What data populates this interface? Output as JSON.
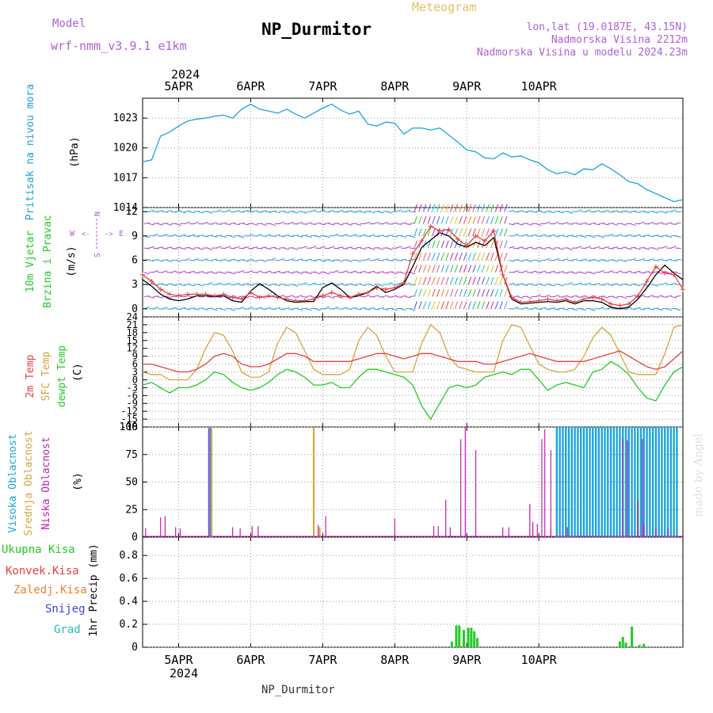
{
  "header": {
    "model_label": "Model",
    "model_name": "wrf-nmm_v3.9.1 e1km",
    "meteogram_label": "Meteogram",
    "station_title": "NP_Durmitor",
    "coords": "lon,lat (19.0187E, 43.15N)",
    "elevation": "Nadmorska Visina 2212m",
    "model_elevation": "Nadmorska Visina u modelu 2024.23m"
  },
  "top_axis": {
    "year": "2024",
    "days": [
      "5APR",
      "6APR",
      "7APR",
      "8APR",
      "9APR",
      "10APR"
    ]
  },
  "bottom_axis": {
    "year": "2024",
    "days": [
      "5APR",
      "6APR",
      "7APR",
      "8APR",
      "9APR",
      "10APR"
    ],
    "footer": "NP_Durmitor"
  },
  "watermark": "made by Angel",
  "colors": {
    "pressure": "#1ba3e0",
    "temp2m": "#e84040",
    "sfc_temp": "#d9a43a",
    "dewpt": "#22cc22",
    "high_cloud": "#1ba3e0",
    "mid_cloud": "#d9a43a",
    "low_cloud": "#c020b0",
    "precip_total": "#22cc22",
    "wind_speed_line": "#000000",
    "wind_gust": "#e84040"
  },
  "panels": {
    "pressure": {
      "label_left": "Pritisak na nivou mora",
      "unit": "(hPa)",
      "ticks": [
        "1023",
        "1020",
        "1017",
        "1014"
      ]
    },
    "wind": {
      "label_left_1": "10m Vjetar",
      "label_left_2": "Brzina i Pravac",
      "unit": "(m/s)",
      "ticks": [
        "12",
        "9",
        "6",
        "3",
        "0"
      ],
      "compass": {
        "n": "N",
        "s": "S",
        "e": "E",
        "w": "W"
      }
    },
    "temp": {
      "label_1": "2m Temp",
      "label_2": "SFC Temp",
      "label_3": "dewpt Temp",
      "unit": "(C)",
      "ticks": [
        "24",
        "21",
        "18",
        "15",
        "12",
        "9",
        "6",
        "3",
        "0",
        "-3",
        "-6",
        "-9",
        "-12",
        "-15",
        "-18"
      ]
    },
    "cloud": {
      "label_1": "Visoka Oblacnost",
      "label_2": "Srednja Oblacnost",
      "label_3": "Niska Oblacnost",
      "unit": "(%)",
      "ticks": [
        "100",
        "75",
        "50",
        "25",
        "0"
      ]
    },
    "precip": {
      "legend": [
        "Ukupna Kisa",
        "Konvek.Kisa",
        "Zaledj.Kisa",
        "Snijeg",
        "Grad"
      ],
      "unit": "1hr Precip (mm)",
      "ticks": [
        "0.8",
        "0.6",
        "0.4",
        "0.2",
        "0"
      ]
    }
  },
  "chart_data": [
    {
      "type": "line",
      "name": "pressure",
      "ylabel": "(hPa)",
      "ylim": [
        1014,
        1025
      ],
      "x_hours": [
        0,
        6,
        12,
        18,
        24,
        30,
        36,
        42,
        48,
        54,
        60,
        66,
        72,
        78,
        84,
        90,
        96,
        102,
        108,
        114,
        120,
        126,
        132,
        138,
        144,
        150,
        156,
        162,
        168,
        174,
        180,
        186,
        192,
        198,
        204,
        210,
        216,
        222,
        228,
        234,
        240,
        246,
        252,
        258,
        264,
        270,
        276,
        282,
        288,
        294,
        300,
        306,
        312,
        318,
        324,
        330,
        336,
        342,
        348,
        354,
        360
      ],
      "values": [
        1018.6,
        1018.8,
        1021.2,
        1021.6,
        1022.2,
        1022.7,
        1022.9,
        1023.0,
        1023.2,
        1023.3,
        1023.0,
        1023.9,
        1024.4,
        1023.9,
        1023.7,
        1023.5,
        1023.9,
        1023.4,
        1023.0,
        1023.5,
        1024.0,
        1024.4,
        1023.8,
        1023.4,
        1023.7,
        1022.4,
        1022.2,
        1022.6,
        1022.5,
        1021.4,
        1022.0,
        1022.0,
        1021.8,
        1022.0,
        1021.3,
        1020.6,
        1019.8,
        1019.6,
        1019.0,
        1018.9,
        1019.5,
        1019.1,
        1019.2,
        1018.8,
        1018.5,
        1017.8,
        1017.4,
        1017.6,
        1017.3,
        1017.9,
        1017.8,
        1018.4,
        1017.9,
        1017.3,
        1016.6,
        1016.4,
        1015.8,
        1015.4,
        1015.0,
        1014.6,
        1014.8
      ]
    },
    {
      "type": "line",
      "name": "wind",
      "ylabel": "(m/s)",
      "ylim": [
        -1,
        12.5
      ],
      "x_hours": [
        0,
        6,
        12,
        18,
        24,
        30,
        36,
        42,
        48,
        54,
        60,
        66,
        72,
        78,
        84,
        90,
        96,
        102,
        108,
        114,
        120,
        126,
        132,
        138,
        144,
        150,
        156,
        162,
        168,
        174,
        180,
        186,
        192,
        198,
        204,
        210,
        216,
        222,
        228,
        234,
        240,
        246,
        252,
        258,
        264,
        270,
        276,
        282,
        288,
        294,
        300,
        306,
        312,
        318,
        324,
        330,
        336,
        342,
        348,
        354,
        360
      ],
      "speed": [
        3.6,
        2.8,
        1.8,
        1.2,
        1.0,
        1.2,
        1.6,
        1.6,
        1.5,
        1.6,
        1.0,
        0.8,
        2.2,
        3.1,
        2.4,
        1.6,
        1.0,
        0.8,
        0.9,
        0.9,
        2.6,
        3.2,
        2.4,
        1.4,
        1.6,
        2.0,
        2.8,
        2.0,
        2.4,
        3.0,
        5.2,
        7.6,
        8.5,
        9.4,
        9.0,
        8.0,
        7.6,
        8.2,
        7.8,
        8.8,
        4.2,
        1.2,
        0.6,
        0.7,
        0.8,
        0.9,
        0.8,
        1.0,
        0.6,
        1.0,
        1.0,
        0.8,
        0.2,
        0.0,
        0.2,
        1.2,
        2.6,
        4.2,
        5.4,
        4.4,
        3.6
      ],
      "gust": [
        4.2,
        3.4,
        2.4,
        1.8,
        1.6,
        1.8,
        1.8,
        1.8,
        1.6,
        1.8,
        1.4,
        1.2,
        2.0,
        1.4,
        1.6,
        1.4,
        1.2,
        1.0,
        1.0,
        1.2,
        1.6,
        2.0,
        1.6,
        1.4,
        1.8,
        2.0,
        2.6,
        2.4,
        2.6,
        3.2,
        6.8,
        8.4,
        10.2,
        9.6,
        9.8,
        8.6,
        7.8,
        9.0,
        8.4,
        9.6,
        4.2,
        1.4,
        0.8,
        0.9,
        1.0,
        1.2,
        1.0,
        1.2,
        0.8,
        1.2,
        1.4,
        1.2,
        0.6,
        0.4,
        0.6,
        1.6,
        3.4,
        5.2,
        4.4,
        4.2,
        2.4
      ]
    },
    {
      "type": "line",
      "name": "temperature",
      "ylabel": "(C)",
      "ylim": [
        -18,
        24
      ],
      "x_hours": [
        0,
        6,
        12,
        18,
        24,
        30,
        36,
        42,
        48,
        54,
        60,
        66,
        72,
        78,
        84,
        90,
        96,
        102,
        108,
        114,
        120,
        126,
        132,
        138,
        144,
        150,
        156,
        162,
        168,
        174,
        180,
        186,
        192,
        198,
        204,
        210,
        216,
        222,
        228,
        234,
        240,
        246,
        252,
        258,
        264,
        270,
        276,
        282,
        288,
        294,
        300,
        306,
        312,
        318,
        324,
        330,
        336,
        342,
        348,
        354,
        360
      ],
      "temp2m": [
        6,
        6,
        5,
        4,
        3,
        3,
        4,
        6,
        9,
        10,
        9,
        6,
        5,
        5,
        6,
        8,
        10,
        10,
        9,
        7,
        7,
        7,
        7,
        7,
        8,
        9,
        10,
        10,
        9,
        8,
        9,
        10,
        10,
        9,
        8,
        7,
        7,
        7,
        6,
        6,
        7,
        8,
        9,
        10,
        9,
        8,
        7,
        7,
        7,
        7,
        8,
        9,
        10,
        11,
        9,
        7,
        5,
        4,
        5,
        8,
        11
      ],
      "sfc_temp": [
        3,
        2,
        2,
        0,
        0,
        0,
        4,
        12,
        18,
        17,
        11,
        3,
        1,
        1,
        3,
        14,
        20,
        18,
        11,
        4,
        2,
        2,
        2,
        4,
        15,
        20,
        17,
        9,
        3,
        3,
        3,
        14,
        21,
        18,
        9,
        5,
        4,
        3,
        3,
        3,
        15,
        21,
        20,
        13,
        6,
        4,
        3,
        3,
        4,
        9,
        16,
        20,
        17,
        10,
        3,
        2,
        2,
        2,
        10,
        20,
        21
      ],
      "dewpt": [
        -2,
        -1,
        -3,
        -5,
        -3,
        -3,
        -2,
        0,
        3,
        2,
        -1,
        -3,
        -4,
        -3,
        -1,
        2,
        4,
        3,
        1,
        -2,
        -2,
        -1,
        -3,
        -3,
        1,
        4,
        4,
        3,
        2,
        1,
        -2,
        -10,
        -15,
        -9,
        -3,
        -2,
        -3,
        -2,
        1,
        2,
        3,
        2,
        4,
        4,
        0,
        -4,
        -2,
        -1,
        -2,
        -3,
        3,
        4,
        7,
        5,
        2,
        -3,
        -7,
        -8,
        -2,
        3,
        5
      ]
    },
    {
      "type": "bar",
      "name": "cloud_cover",
      "ylabel": "(%)",
      "ylim": [
        0,
        100
      ],
      "high": [
        {
          "x": 45,
          "v": 100
        },
        {
          "x": 276,
          "v": 100
        },
        {
          "x": 278,
          "v": 100
        },
        {
          "x": 280,
          "v": 100
        },
        {
          "x": 282,
          "v": 100
        },
        {
          "x": 284,
          "v": 100
        },
        {
          "x": 286,
          "v": 100
        },
        {
          "x": 288,
          "v": 100
        },
        {
          "x": 290,
          "v": 100
        },
        {
          "x": 292,
          "v": 100
        },
        {
          "x": 294,
          "v": 100
        },
        {
          "x": 296,
          "v": 100
        },
        {
          "x": 298,
          "v": 100
        },
        {
          "x": 300,
          "v": 100
        },
        {
          "x": 302,
          "v": 100
        },
        {
          "x": 304,
          "v": 100
        },
        {
          "x": 306,
          "v": 100
        },
        {
          "x": 308,
          "v": 100
        },
        {
          "x": 310,
          "v": 100
        },
        {
          "x": 312,
          "v": 100
        },
        {
          "x": 314,
          "v": 100
        },
        {
          "x": 316,
          "v": 100
        },
        {
          "x": 318,
          "v": 100
        },
        {
          "x": 320,
          "v": 100
        },
        {
          "x": 322,
          "v": 100
        },
        {
          "x": 324,
          "v": 100
        },
        {
          "x": 326,
          "v": 100
        },
        {
          "x": 328,
          "v": 100
        },
        {
          "x": 330,
          "v": 100
        },
        {
          "x": 332,
          "v": 100
        },
        {
          "x": 334,
          "v": 100
        },
        {
          "x": 336,
          "v": 100
        },
        {
          "x": 338,
          "v": 100
        },
        {
          "x": 340,
          "v": 100
        },
        {
          "x": 342,
          "v": 100
        },
        {
          "x": 344,
          "v": 100
        },
        {
          "x": 346,
          "v": 100
        },
        {
          "x": 348,
          "v": 100
        },
        {
          "x": 350,
          "v": 100
        },
        {
          "x": 352,
          "v": 100
        },
        {
          "x": 354,
          "v": 100
        },
        {
          "x": 356,
          "v": 100
        }
      ],
      "mid": [
        {
          "x": 46,
          "v": 100
        },
        {
          "x": 114,
          "v": 100
        },
        {
          "x": 118,
          "v": 9
        }
      ],
      "low": [
        {
          "x": 2,
          "v": 8
        },
        {
          "x": 12,
          "v": 18
        },
        {
          "x": 15,
          "v": 19
        },
        {
          "x": 22,
          "v": 9
        },
        {
          "x": 25,
          "v": 8
        },
        {
          "x": 44,
          "v": 99
        },
        {
          "x": 60,
          "v": 9
        },
        {
          "x": 65,
          "v": 8
        },
        {
          "x": 73,
          "v": 10
        },
        {
          "x": 77,
          "v": 10
        },
        {
          "x": 117,
          "v": 11
        },
        {
          "x": 122,
          "v": 19
        },
        {
          "x": 168,
          "v": 17
        },
        {
          "x": 240,
          "v": 9
        },
        {
          "x": 244,
          "v": 9
        },
        {
          "x": 258,
          "v": 30
        },
        {
          "x": 260,
          "v": 8
        },
        {
          "x": 266,
          "v": 89
        },
        {
          "x": 268,
          "v": 98
        },
        {
          "x": 272,
          "v": 79
        },
        {
          "x": 330,
          "v": 14
        },
        {
          "x": 334,
          "v": 11
        },
        {
          "x": 342,
          "v": 8
        },
        {
          "x": 350,
          "v": 8
        }
      ],
      "low_b": [
        {
          "x": 194,
          "v": 10
        },
        {
          "x": 197,
          "v": 10
        },
        {
          "x": 202,
          "v": 34
        },
        {
          "x": 205,
          "v": 9
        },
        {
          "x": 212,
          "v": 89
        },
        {
          "x": 215,
          "v": 100
        },
        {
          "x": 222,
          "v": 79
        },
        {
          "x": 260,
          "v": 14
        },
        {
          "x": 263,
          "v": 12
        },
        {
          "x": 272,
          "v": 9
        },
        {
          "x": 283,
          "v": 9
        },
        {
          "x": 320,
          "v": 89
        },
        {
          "x": 323,
          "v": 88
        },
        {
          "x": 330,
          "v": 33
        },
        {
          "x": 333,
          "v": 89
        }
      ]
    },
    {
      "type": "bar",
      "name": "precip_1hr",
      "ylabel": "1hr Precip (mm)",
      "ylim": [
        0,
        0.96
      ],
      "total": [
        {
          "x": 206,
          "v": 0.05
        },
        {
          "x": 209,
          "v": 0.19
        },
        {
          "x": 211,
          "v": 0.19
        },
        {
          "x": 214,
          "v": 0.15
        },
        {
          "x": 217,
          "v": 0.17
        },
        {
          "x": 219,
          "v": 0.17
        },
        {
          "x": 221,
          "v": 0.14
        },
        {
          "x": 223,
          "v": 0.08
        },
        {
          "x": 318,
          "v": 0.05
        },
        {
          "x": 320,
          "v": 0.09
        },
        {
          "x": 322,
          "v": 0.04
        },
        {
          "x": 326,
          "v": 0.18
        },
        {
          "x": 331,
          "v": 0.02
        },
        {
          "x": 334,
          "v": 0.03
        }
      ]
    }
  ]
}
